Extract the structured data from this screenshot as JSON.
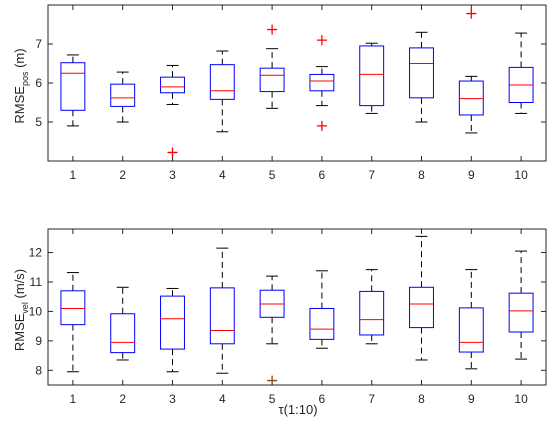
{
  "chart_data": [
    {
      "type": "boxplot",
      "ylabel": {
        "main": "RMSE",
        "sub": "pos",
        "unit": " (m)"
      },
      "xlabel": "",
      "categories": [
        "1",
        "2",
        "3",
        "4",
        "5",
        "6",
        "7",
        "8",
        "9",
        "10"
      ],
      "ylim": [
        4,
        8
      ],
      "yticks": [
        5,
        6,
        7
      ],
      "box_color": "#0000ff",
      "median_color": "#ff0000",
      "outlier_color": "#ff0000",
      "boxes": [
        {
          "q1": 5.3,
          "median": 6.25,
          "q3": 6.52,
          "whisker_low": 4.9,
          "whisker_high": 6.72,
          "outliers": []
        },
        {
          "q1": 5.4,
          "median": 5.62,
          "q3": 5.97,
          "whisker_low": 5.0,
          "whisker_high": 6.28,
          "outliers": []
        },
        {
          "q1": 5.75,
          "median": 5.9,
          "q3": 6.15,
          "whisker_low": 5.45,
          "whisker_high": 6.45,
          "outliers": [
            4.22
          ]
        },
        {
          "q1": 5.58,
          "median": 5.8,
          "q3": 6.47,
          "whisker_low": 4.75,
          "whisker_high": 6.82,
          "outliers": []
        },
        {
          "q1": 5.78,
          "median": 6.2,
          "q3": 6.38,
          "whisker_low": 5.35,
          "whisker_high": 6.88,
          "outliers": [
            7.37
          ]
        },
        {
          "q1": 5.8,
          "median": 6.05,
          "q3": 6.22,
          "whisker_low": 5.42,
          "whisker_high": 6.42,
          "outliers": [
            7.1,
            4.9
          ]
        },
        {
          "q1": 5.42,
          "median": 6.22,
          "q3": 6.95,
          "whisker_low": 5.22,
          "whisker_high": 7.02,
          "outliers": []
        },
        {
          "q1": 5.62,
          "median": 6.5,
          "q3": 6.9,
          "whisker_low": 5.0,
          "whisker_high": 7.3,
          "outliers": []
        },
        {
          "q1": 5.18,
          "median": 5.6,
          "q3": 6.05,
          "whisker_low": 4.72,
          "whisker_high": 6.17,
          "outliers": [
            7.78
          ]
        },
        {
          "q1": 5.5,
          "median": 5.95,
          "q3": 6.4,
          "whisker_low": 5.22,
          "whisker_high": 7.28,
          "outliers": []
        }
      ]
    },
    {
      "type": "boxplot",
      "ylabel": {
        "main": "RMSE",
        "sub": "vel",
        "unit": " (m/s)"
      },
      "xlabel": "τ(1:10)",
      "categories": [
        "1",
        "2",
        "3",
        "4",
        "5",
        "6",
        "7",
        "8",
        "9",
        "10"
      ],
      "ylim": [
        7.5,
        12.8
      ],
      "yticks": [
        8,
        9,
        10,
        11,
        12
      ],
      "box_color": "#0000ff",
      "median_color": "#ff0000",
      "outlier_color": "#8b4513",
      "boxes": [
        {
          "q1": 9.55,
          "median": 10.1,
          "q3": 10.7,
          "whisker_low": 7.95,
          "whisker_high": 11.32,
          "outliers": []
        },
        {
          "q1": 8.6,
          "median": 8.95,
          "q3": 9.92,
          "whisker_low": 8.35,
          "whisker_high": 10.82,
          "outliers": []
        },
        {
          "q1": 8.72,
          "median": 9.75,
          "q3": 10.52,
          "whisker_low": 7.95,
          "whisker_high": 10.78,
          "outliers": []
        },
        {
          "q1": 8.9,
          "median": 9.35,
          "q3": 10.8,
          "whisker_low": 7.9,
          "whisker_high": 12.15,
          "outliers": []
        },
        {
          "q1": 9.8,
          "median": 10.25,
          "q3": 10.72,
          "whisker_low": 8.9,
          "whisker_high": 11.2,
          "outliers": [
            7.65
          ]
        },
        {
          "q1": 9.05,
          "median": 9.4,
          "q3": 10.1,
          "whisker_low": 8.75,
          "whisker_high": 11.38,
          "outliers": []
        },
        {
          "q1": 9.2,
          "median": 9.72,
          "q3": 10.68,
          "whisker_low": 8.9,
          "whisker_high": 11.42,
          "outliers": []
        },
        {
          "q1": 9.45,
          "median": 10.25,
          "q3": 10.82,
          "whisker_low": 8.35,
          "whisker_high": 12.55,
          "outliers": []
        },
        {
          "q1": 8.62,
          "median": 8.95,
          "q3": 10.12,
          "whisker_low": 8.05,
          "whisker_high": 11.42,
          "outliers": []
        },
        {
          "q1": 9.3,
          "median": 10.02,
          "q3": 10.62,
          "whisker_low": 8.38,
          "whisker_high": 12.05,
          "outliers": []
        }
      ]
    }
  ]
}
